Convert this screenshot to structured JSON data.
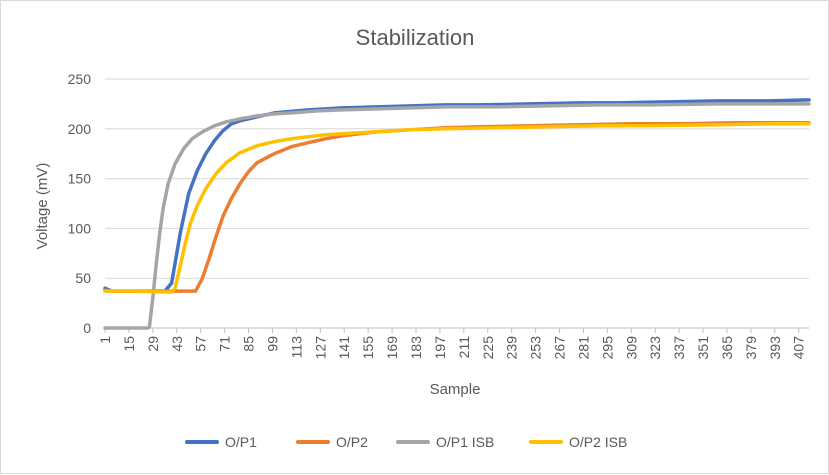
{
  "chart_data": {
    "type": "line",
    "title": "Stabilization",
    "xlabel": "Sample",
    "ylabel": "Voltage (mV)",
    "ylim": [
      0,
      250
    ],
    "yticks": [
      0,
      50,
      100,
      150,
      200,
      250
    ],
    "x_range": [
      1,
      413
    ],
    "xtick_labels": [
      "1",
      "15",
      "29",
      "43",
      "57",
      "71",
      "85",
      "99",
      "113",
      "127",
      "141",
      "155",
      "169",
      "183",
      "197",
      "211",
      "225",
      "239",
      "253",
      "267",
      "281",
      "295",
      "309",
      "323",
      "337",
      "351",
      "365",
      "379",
      "393",
      "407"
    ],
    "grid": "horizontal",
    "legend_position": "bottom",
    "series": [
      {
        "name": "O/P1",
        "color": "#4472C4",
        "points": [
          [
            1,
            40
          ],
          [
            5,
            37
          ],
          [
            20,
            37
          ],
          [
            36,
            37
          ],
          [
            40,
            45
          ],
          [
            45,
            95
          ],
          [
            50,
            135
          ],
          [
            55,
            158
          ],
          [
            60,
            175
          ],
          [
            65,
            188
          ],
          [
            70,
            198
          ],
          [
            75,
            205
          ],
          [
            80,
            208
          ],
          [
            90,
            212
          ],
          [
            100,
            216
          ],
          [
            120,
            219
          ],
          [
            140,
            221
          ],
          [
            160,
            222
          ],
          [
            180,
            223
          ],
          [
            200,
            224
          ],
          [
            220,
            224
          ],
          [
            250,
            225
          ],
          [
            280,
            226
          ],
          [
            300,
            226
          ],
          [
            330,
            227
          ],
          [
            360,
            228
          ],
          [
            390,
            228
          ],
          [
            413,
            229
          ]
        ]
      },
      {
        "name": "O/P2",
        "color": "#ED7D31",
        "points": [
          [
            1,
            38
          ],
          [
            5,
            37
          ],
          [
            40,
            37
          ],
          [
            50,
            37
          ],
          [
            54,
            37
          ],
          [
            58,
            50
          ],
          [
            62,
            70
          ],
          [
            66,
            92
          ],
          [
            70,
            112
          ],
          [
            75,
            130
          ],
          [
            80,
            145
          ],
          [
            85,
            157
          ],
          [
            90,
            166
          ],
          [
            100,
            175
          ],
          [
            110,
            182
          ],
          [
            120,
            186
          ],
          [
            130,
            190
          ],
          [
            140,
            193
          ],
          [
            160,
            197
          ],
          [
            180,
            199
          ],
          [
            200,
            201
          ],
          [
            220,
            202
          ],
          [
            250,
            203
          ],
          [
            280,
            204
          ],
          [
            310,
            205
          ],
          [
            340,
            205
          ],
          [
            370,
            206
          ],
          [
            400,
            206
          ],
          [
            413,
            206
          ]
        ]
      },
      {
        "name": "O/P1 ISB",
        "color": "#A5A5A5",
        "points": [
          [
            1,
            0
          ],
          [
            26,
            0
          ],
          [
            27,
            1
          ],
          [
            29,
            30
          ],
          [
            31,
            65
          ],
          [
            33,
            95
          ],
          [
            35,
            120
          ],
          [
            38,
            145
          ],
          [
            42,
            165
          ],
          [
            47,
            180
          ],
          [
            52,
            190
          ],
          [
            58,
            197
          ],
          [
            65,
            203
          ],
          [
            72,
            207
          ],
          [
            80,
            210
          ],
          [
            90,
            213
          ],
          [
            100,
            215
          ],
          [
            110,
            216
          ],
          [
            125,
            218
          ],
          [
            140,
            219
          ],
          [
            160,
            220
          ],
          [
            180,
            221
          ],
          [
            200,
            222
          ],
          [
            230,
            222
          ],
          [
            260,
            223
          ],
          [
            290,
            224
          ],
          [
            320,
            224
          ],
          [
            360,
            225
          ],
          [
            413,
            225
          ]
        ]
      },
      {
        "name": "O/P2 ISB",
        "color": "#FFC000",
        "points": [
          [
            1,
            37
          ],
          [
            20,
            37
          ],
          [
            40,
            36
          ],
          [
            42,
            40
          ],
          [
            45,
            62
          ],
          [
            48,
            85
          ],
          [
            51,
            105
          ],
          [
            55,
            123
          ],
          [
            60,
            140
          ],
          [
            66,
            155
          ],
          [
            72,
            166
          ],
          [
            80,
            176
          ],
          [
            90,
            183
          ],
          [
            100,
            187
          ],
          [
            110,
            190
          ],
          [
            120,
            192
          ],
          [
            130,
            194
          ],
          [
            140,
            195
          ],
          [
            160,
            197
          ],
          [
            180,
            199
          ],
          [
            200,
            200
          ],
          [
            230,
            201
          ],
          [
            260,
            202
          ],
          [
            290,
            203
          ],
          [
            320,
            203
          ],
          [
            360,
            204
          ],
          [
            390,
            205
          ],
          [
            413,
            205
          ]
        ]
      }
    ]
  }
}
